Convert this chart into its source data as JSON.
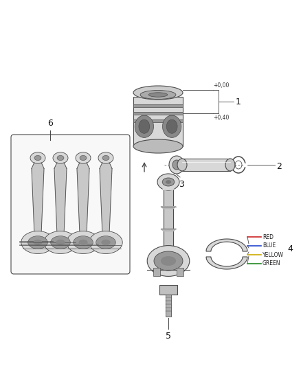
{
  "bg_color": "#ffffff",
  "line_color": "#4a4a4a",
  "gray_fill": "#d8d8d8",
  "dark_gray": "#999999",
  "light_gray": "#eeeeee",
  "label4_colors": [
    "RED",
    "BLUE",
    "YELLOW",
    "GREEN"
  ],
  "label4_hex": [
    "#cc2222",
    "#2244cc",
    "#ccaa00",
    "#228822"
  ],
  "annotations_1": [
    "+0,00",
    "+0,40"
  ],
  "part_numbers": [
    "1",
    "2",
    "3",
    "4",
    "5",
    "6"
  ]
}
